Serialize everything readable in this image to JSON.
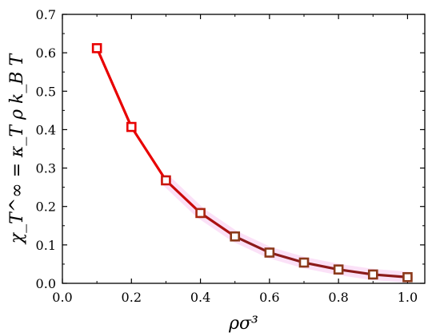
{
  "chart_data": {
    "type": "line",
    "xlabel": "ρσ³",
    "ylabel": "χ_T^∞ = κ_T ρ k_B T",
    "xlim": [
      0.0,
      1.05
    ],
    "ylim": [
      0.0,
      0.7
    ],
    "x_ticks": [
      "0.0",
      "0.2",
      "0.4",
      "0.6",
      "0.8",
      "1.0"
    ],
    "y_ticks": [
      "0.0",
      "0.1",
      "0.2",
      "0.3",
      "0.4",
      "0.5",
      "0.6",
      "0.7"
    ],
    "grid": false,
    "series": [
      {
        "marker": "square",
        "points": [
          {
            "x": 0.1,
            "y": 0.612
          },
          {
            "x": 0.2,
            "y": 0.407
          },
          {
            "x": 0.3,
            "y": 0.268
          },
          {
            "x": 0.4,
            "y": 0.183
          },
          {
            "x": 0.5,
            "y": 0.122
          },
          {
            "x": 0.6,
            "y": 0.08
          },
          {
            "x": 0.7,
            "y": 0.054
          },
          {
            "x": 0.8,
            "y": 0.036
          },
          {
            "x": 0.9,
            "y": 0.023
          },
          {
            "x": 1.0,
            "y": 0.016
          }
        ]
      }
    ],
    "colors": {
      "line_start": "#e80000",
      "line_end": "#8b1a1a",
      "marker_start": "#e80000",
      "marker_end": "#8b3a1a",
      "highlight": "#f7c8f0"
    }
  }
}
